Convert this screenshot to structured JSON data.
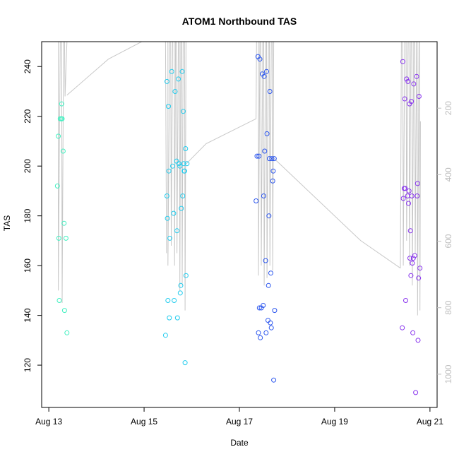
{
  "chart_data": {
    "type": "scatter",
    "title": "ATOM1 Northbound TAS",
    "xlabel": "Date",
    "ylabel": "TAS",
    "x_ticks": [
      "Aug 13",
      "Aug 15",
      "Aug 17",
      "Aug 19",
      "Aug 21"
    ],
    "x_tick_values": [
      13,
      15,
      17,
      19,
      21
    ],
    "xlim": [
      12.85,
      21.15
    ],
    "y_ticks": [
      120,
      140,
      160,
      180,
      200,
      220,
      240
    ],
    "ylim": [
      103,
      250
    ],
    "right_axis": {
      "ticks": [
        200,
        400,
        600,
        800,
        1000
      ],
      "lim": [
        0,
        1100
      ],
      "reversed": true,
      "color": "#bdbdbd"
    },
    "line_color": "#c8c8c8",
    "series": [
      {
        "color": "#40f0c0",
        "points": [
          [
            13.18,
            192
          ],
          [
            13.2,
            212
          ],
          [
            13.21,
            171
          ],
          [
            13.22,
            146
          ],
          [
            13.24,
            219
          ],
          [
            13.26,
            219
          ],
          [
            13.27,
            225
          ],
          [
            13.28,
            219
          ],
          [
            13.3,
            206
          ],
          [
            13.32,
            177
          ],
          [
            13.33,
            142
          ],
          [
            13.36,
            171
          ],
          [
            13.38,
            133
          ]
        ]
      },
      {
        "color": "#22ccee",
        "points": [
          [
            15.45,
            132
          ],
          [
            15.48,
            188
          ],
          [
            15.48,
            234
          ],
          [
            15.49,
            179
          ],
          [
            15.5,
            146
          ],
          [
            15.51,
            224
          ],
          [
            15.52,
            198
          ],
          [
            15.53,
            139
          ],
          [
            15.54,
            171
          ],
          [
            15.58,
            238
          ],
          [
            15.6,
            200
          ],
          [
            15.62,
            181
          ],
          [
            15.63,
            146
          ],
          [
            15.65,
            230
          ],
          [
            15.68,
            202
          ],
          [
            15.69,
            174
          ],
          [
            15.7,
            139
          ],
          [
            15.72,
            235
          ],
          [
            15.73,
            201
          ],
          [
            15.75,
            200
          ],
          [
            15.76,
            149
          ],
          [
            15.77,
            152
          ],
          [
            15.78,
            183
          ],
          [
            15.8,
            238
          ],
          [
            15.81,
            188
          ],
          [
            15.82,
            222
          ],
          [
            15.83,
            201
          ],
          [
            15.84,
            198
          ],
          [
            15.85,
            198
          ],
          [
            15.87,
            207
          ],
          [
            15.88,
            156
          ],
          [
            15.86,
            121
          ],
          [
            15.9,
            201
          ]
        ]
      },
      {
        "color": "#2a55ee",
        "points": [
          [
            17.35,
            186
          ],
          [
            17.37,
            204
          ],
          [
            17.39,
            244
          ],
          [
            17.4,
            133
          ],
          [
            17.41,
            204
          ],
          [
            17.42,
            143
          ],
          [
            17.43,
            243
          ],
          [
            17.44,
            131
          ],
          [
            17.46,
            143
          ],
          [
            17.48,
            237
          ],
          [
            17.5,
            144
          ],
          [
            17.51,
            188
          ],
          [
            17.52,
            236
          ],
          [
            17.53,
            206
          ],
          [
            17.55,
            162
          ],
          [
            17.56,
            133
          ],
          [
            17.57,
            238
          ],
          [
            17.58,
            213
          ],
          [
            17.6,
            138
          ],
          [
            17.61,
            152
          ],
          [
            17.62,
            180
          ],
          [
            17.63,
            203
          ],
          [
            17.64,
            230
          ],
          [
            17.65,
            137
          ],
          [
            17.66,
            157
          ],
          [
            17.67,
            135
          ],
          [
            17.68,
            203
          ],
          [
            17.7,
            194
          ],
          [
            17.71,
            198
          ],
          [
            17.72,
            114
          ],
          [
            17.73,
            203
          ],
          [
            17.74,
            142
          ]
        ]
      },
      {
        "color": "#8833ee",
        "points": [
          [
            20.42,
            135
          ],
          [
            20.43,
            242
          ],
          [
            20.44,
            187
          ],
          [
            20.46,
            191
          ],
          [
            20.47,
            227
          ],
          [
            20.48,
            191
          ],
          [
            20.49,
            146
          ],
          [
            20.51,
            235
          ],
          [
            20.53,
            188
          ],
          [
            20.54,
            234
          ],
          [
            20.55,
            185
          ],
          [
            20.56,
            190
          ],
          [
            20.57,
            225
          ],
          [
            20.58,
            163
          ],
          [
            20.59,
            174
          ],
          [
            20.6,
            156
          ],
          [
            20.61,
            226
          ],
          [
            20.62,
            188
          ],
          [
            20.63,
            161
          ],
          [
            20.64,
            133
          ],
          [
            20.65,
            163
          ],
          [
            20.66,
            233
          ],
          [
            20.68,
            164
          ],
          [
            20.7,
            109
          ],
          [
            20.72,
            236
          ],
          [
            20.73,
            188
          ],
          [
            20.74,
            193
          ],
          [
            20.75,
            130
          ],
          [
            20.76,
            155
          ],
          [
            20.77,
            228
          ],
          [
            20.79,
            159
          ]
        ]
      }
    ],
    "line_segments": [
      [
        [
          13.2,
          250
        ],
        [
          13.2,
          150
        ],
        [
          13.24,
          250
        ]
      ],
      [
        [
          13.27,
          250
        ],
        [
          13.28,
          145
        ],
        [
          13.31,
          250
        ]
      ],
      [
        [
          13.33,
          250
        ],
        [
          13.34,
          228
        ],
        [
          13.38,
          250
        ]
      ],
      [
        [
          13.38,
          228.5
        ],
        [
          14.25,
          243
        ],
        [
          14.95,
          250
        ]
      ],
      [
        [
          15.45,
          250
        ],
        [
          15.47,
          165
        ]
      ],
      [
        [
          15.5,
          250
        ],
        [
          15.5,
          160
        ],
        [
          15.54,
          250
        ]
      ],
      [
        [
          15.56,
          250
        ],
        [
          15.57,
          168
        ],
        [
          15.6,
          250
        ]
      ],
      [
        [
          15.63,
          250
        ],
        [
          15.64,
          160
        ],
        [
          15.66,
          250
        ]
      ],
      [
        [
          15.68,
          250
        ],
        [
          15.69,
          165
        ],
        [
          15.72,
          250
        ]
      ],
      [
        [
          15.74,
          250
        ],
        [
          15.75,
          150
        ],
        [
          15.77,
          250
        ]
      ],
      [
        [
          15.79,
          250
        ],
        [
          15.8,
          152
        ],
        [
          15.82,
          250
        ]
      ],
      [
        [
          15.85,
          250
        ],
        [
          15.86,
          142
        ],
        [
          15.88,
          250
        ]
      ],
      [
        [
          15.89,
          201
        ],
        [
          16.3,
          209
        ],
        [
          17.35,
          219
        ]
      ],
      [
        [
          17.35,
          219
        ],
        [
          17.36,
          250
        ]
      ],
      [
        [
          17.4,
          250
        ],
        [
          17.4,
          156
        ],
        [
          17.43,
          250
        ]
      ],
      [
        [
          17.45,
          250
        ],
        [
          17.46,
          160
        ],
        [
          17.49,
          250
        ]
      ],
      [
        [
          17.51,
          250
        ],
        [
          17.52,
          152
        ],
        [
          17.55,
          250
        ]
      ],
      [
        [
          17.57,
          250
        ],
        [
          17.58,
          155
        ],
        [
          17.61,
          250
        ]
      ],
      [
        [
          17.63,
          250
        ],
        [
          17.64,
          160
        ],
        [
          17.67,
          250
        ]
      ],
      [
        [
          17.69,
          250
        ],
        [
          17.7,
          158
        ],
        [
          17.72,
          250
        ]
      ],
      [
        [
          17.73,
          203
        ],
        [
          19.55,
          170
        ],
        [
          20.38,
          159
        ]
      ],
      [
        [
          20.38,
          159
        ],
        [
          20.4,
          250
        ]
      ],
      [
        [
          20.43,
          250
        ],
        [
          20.44,
          160
        ],
        [
          20.47,
          250
        ]
      ],
      [
        [
          20.5,
          250
        ],
        [
          20.51,
          170
        ],
        [
          20.54,
          250
        ]
      ],
      [
        [
          20.56,
          250
        ],
        [
          20.57,
          160
        ],
        [
          20.6,
          250
        ]
      ],
      [
        [
          20.62,
          250
        ],
        [
          20.63,
          152
        ],
        [
          20.66,
          250
        ]
      ],
      [
        [
          20.68,
          250
        ],
        [
          20.69,
          165
        ],
        [
          20.72,
          250
        ]
      ],
      [
        [
          20.73,
          250
        ],
        [
          20.74,
          140
        ],
        [
          20.77,
          250
        ]
      ],
      [
        [
          20.78,
          250
        ],
        [
          20.79,
          142
        ],
        [
          20.8,
          218
        ]
      ]
    ]
  }
}
